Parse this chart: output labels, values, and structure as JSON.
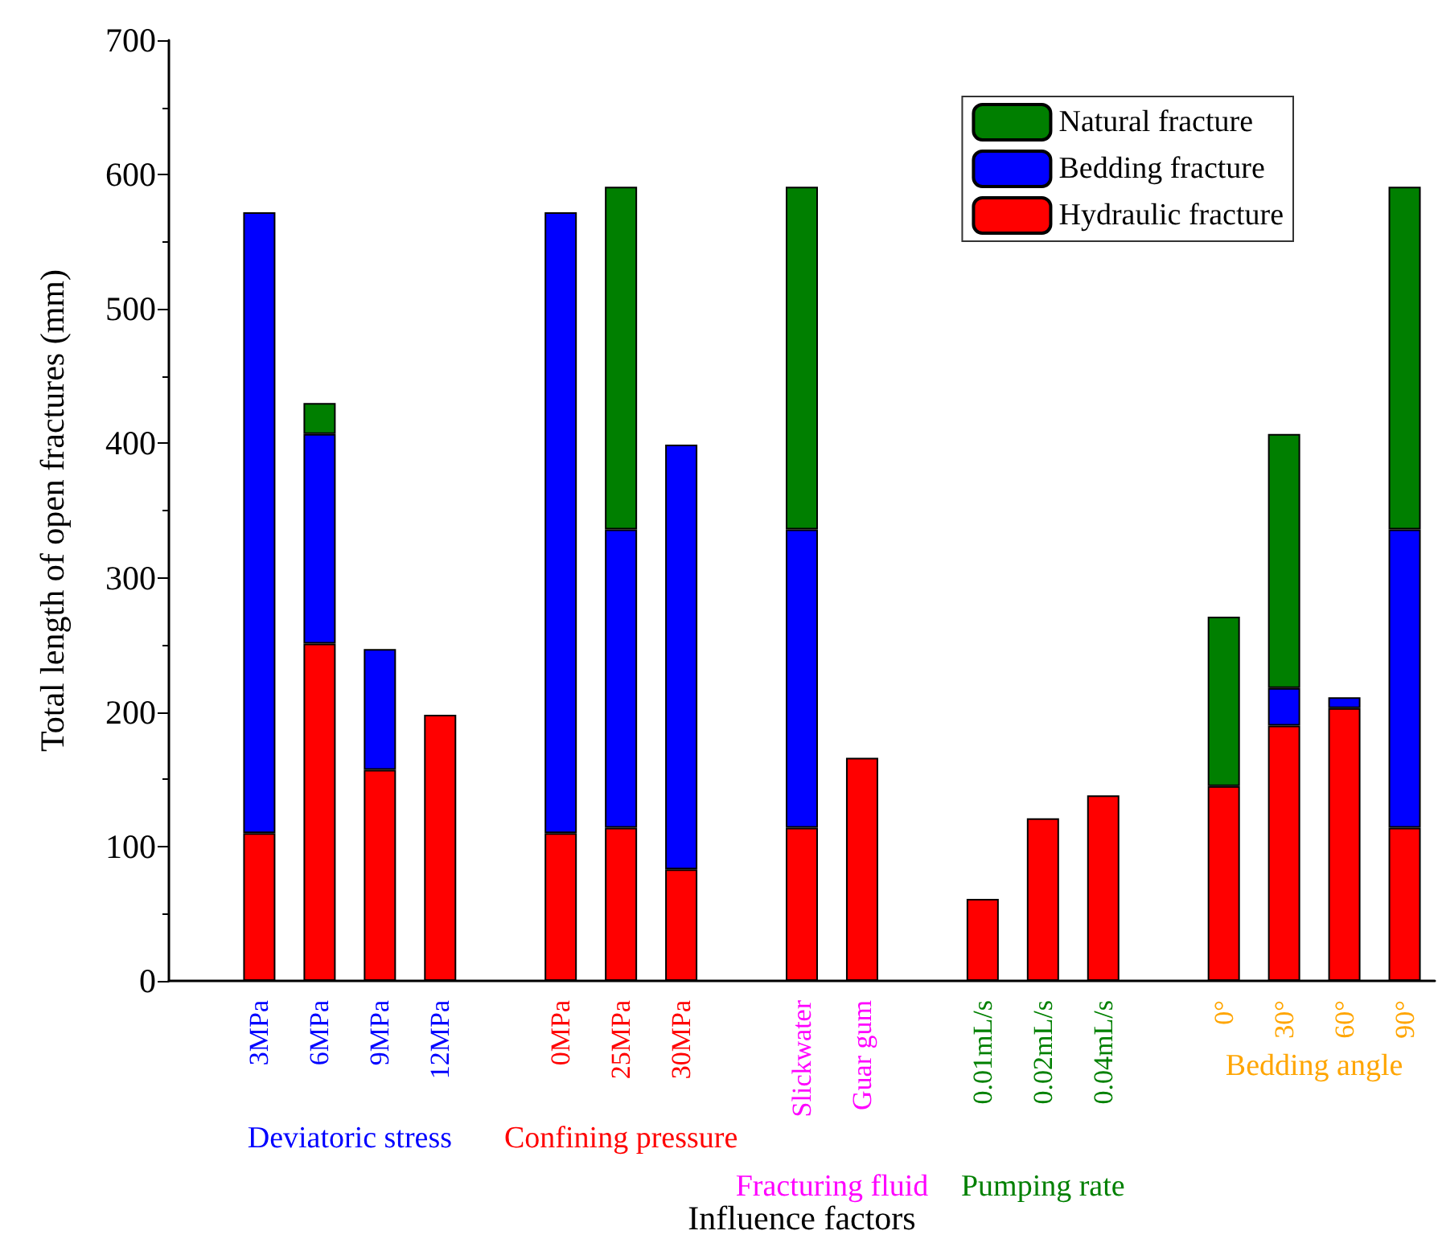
{
  "chart_data": {
    "type": "bar",
    "stacked": true,
    "xlabel": "Influence factors",
    "ylabel": "Total length of open fractures (mm)",
    "categories": [
      null,
      "3MPa",
      "6MPa",
      "9MPa",
      "12MPa",
      null,
      "0MPa",
      "25MPa",
      "30MPa",
      null,
      "Slickwater",
      "Guar gum",
      null,
      "0.01mL/s",
      "0.02mL/s",
      "0.04mL/s",
      null,
      "0°",
      "30°",
      "60°",
      "90°"
    ],
    "series": [
      {
        "name": "Hydraulic fracture",
        "color": "#ff0000",
        "values": [
          null,
          110,
          251,
          157,
          198,
          null,
          110,
          114,
          83,
          null,
          114,
          166,
          null,
          61,
          121,
          138,
          null,
          145,
          190,
          203,
          114
        ]
      },
      {
        "name": "Bedding fracture",
        "color": "#0000ff",
        "values": [
          null,
          462,
          156,
          90,
          null,
          null,
          462,
          222,
          316,
          null,
          222,
          null,
          null,
          null,
          null,
          null,
          null,
          null,
          28,
          8,
          222
        ]
      },
      {
        "name": "Natural fracture",
        "color": "#007f00",
        "values": [
          null,
          null,
          23,
          null,
          null,
          null,
          null,
          255,
          null,
          null,
          255,
          null,
          null,
          null,
          null,
          null,
          null,
          126,
          189,
          null,
          255
        ]
      }
    ],
    "annotations": [
      "Deviatoric stress",
      "Confining pressure",
      "Fracturing fluid",
      "Pumping rate",
      "Bedding angle"
    ],
    "ylim": [
      0,
      700
    ],
    "yticks": [
      0,
      100,
      200,
      300,
      400,
      500,
      600,
      700
    ],
    "legend": "top right",
    "grid": false
  }
}
